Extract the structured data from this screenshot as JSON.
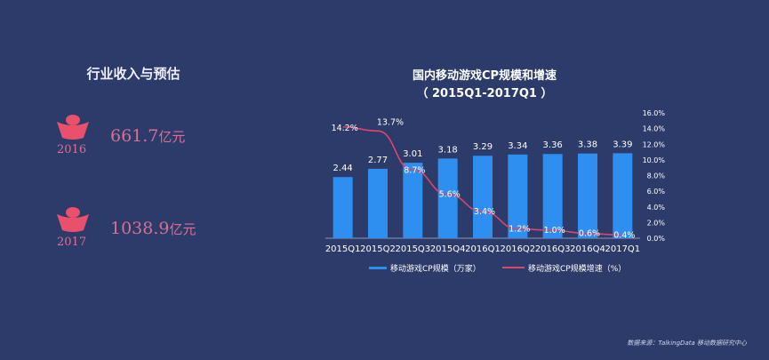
{
  "left": {
    "title": "行业收入与预估",
    "items": [
      {
        "year": "2016",
        "value": "661.7",
        "unit": "亿元"
      },
      {
        "year": "2017",
        "value": "1038.9",
        "unit": "亿元"
      }
    ]
  },
  "source": "数据来源：TalkingData 移动数据研究中心",
  "colors": {
    "background": "#2c3b69",
    "bar": "#2f8ff0",
    "line": "#d9466f",
    "accent": "#e8506e"
  },
  "chart_data": {
    "type": "bar",
    "title": "国内移动游戏CP规模和增速",
    "subtitle": "（ 2015Q1-2017Q1 ）",
    "categories": [
      "2015Q1",
      "2015Q2",
      "2015Q3",
      "2015Q4",
      "2016Q1",
      "2016Q2",
      "2016Q3",
      "2016Q4",
      "2017Q1"
    ],
    "series": [
      {
        "name": "移动游戏CP规模（万家）",
        "type": "bar",
        "axis": "left",
        "values": [
          2.44,
          2.77,
          3.01,
          3.18,
          3.29,
          3.34,
          3.36,
          3.38,
          3.39
        ],
        "labels": [
          "2.44",
          "2.77",
          "3.01",
          "3.18",
          "3.29",
          "3.34",
          "3.36",
          "3.38",
          "3.39"
        ]
      },
      {
        "name": "移动游戏CP规模增速（%）",
        "type": "line",
        "axis": "right",
        "values": [
          14.2,
          13.7,
          8.7,
          5.6,
          3.4,
          1.2,
          1.0,
          0.6,
          0.4
        ],
        "labels": [
          "14.2%",
          "13.7%",
          "8.7%",
          "5.6%",
          "3.4%",
          "1.2%",
          "1.0%",
          "0.6%",
          "0.4%"
        ]
      }
    ],
    "y_left_range": [
      0,
      5
    ],
    "y_right_range": [
      0,
      16
    ],
    "y_right_ticks": [
      "0.0%",
      "2.0%",
      "4.0%",
      "6.0%",
      "8.0%",
      "10.0%",
      "12.0%",
      "14.0%",
      "16.0%"
    ],
    "legend": "bottom",
    "grid": false
  }
}
